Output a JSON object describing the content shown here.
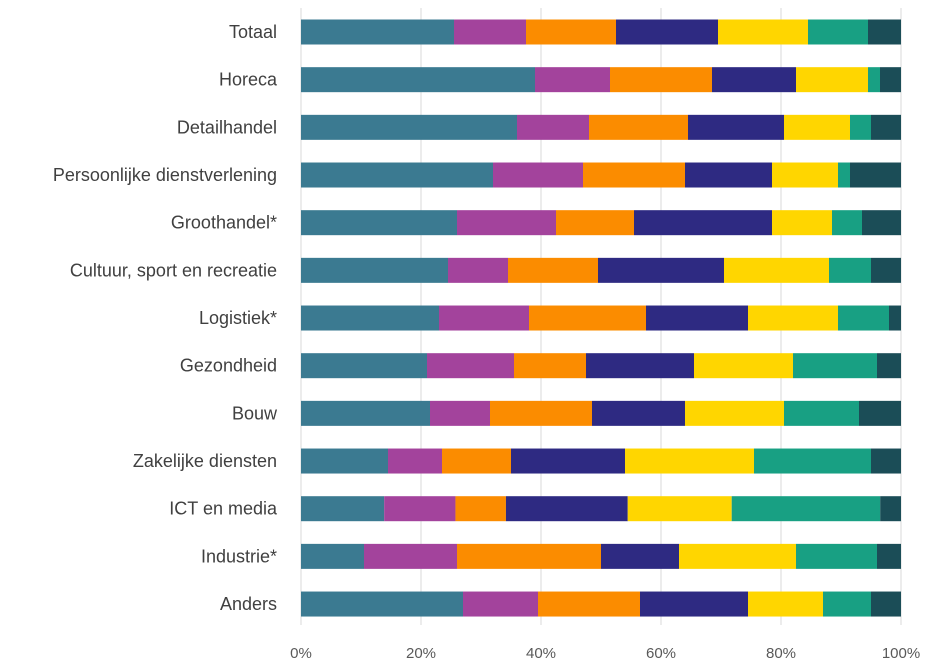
{
  "chart_data": {
    "type": "bar",
    "orientation": "horizontal",
    "stacked": "100%",
    "categories": [
      "Totaal",
      "Horeca",
      "Detailhandel",
      "Persoonlijke dienstverlening",
      "Groothandel*",
      "Cultuur, sport en recreatie",
      "Logistiek*",
      "Gezondheid",
      "Bouw",
      "Zakelijke diensten",
      "ICT en media",
      "Industrie*",
      "Anders"
    ],
    "series": [
      {
        "color": "#3b7a91",
        "values": [
          25.5,
          39,
          36,
          32,
          26,
          24.5,
          23,
          21,
          21.5,
          14.5,
          14,
          10.5,
          27
        ]
      },
      {
        "color": "#a3439c",
        "values": [
          12,
          12.5,
          12,
          15,
          16.5,
          10,
          15,
          14.5,
          10,
          9,
          12,
          15.5,
          12.5
        ]
      },
      {
        "color": "#fb8c00",
        "values": [
          15,
          17,
          16.5,
          17,
          13,
          15,
          19.5,
          12,
          17,
          11.5,
          8.5,
          24,
          17
        ]
      },
      {
        "color": "#2e2a82",
        "values": [
          17,
          14,
          16,
          14.5,
          23,
          21,
          17,
          18,
          15.5,
          19,
          20.5,
          13,
          18
        ]
      },
      {
        "color": "#ffd600",
        "values": [
          15,
          12,
          11,
          11,
          10,
          17.5,
          15,
          16.5,
          16.5,
          21.5,
          17.5,
          19.5,
          12.5
        ]
      },
      {
        "color": "#18a083",
        "values": [
          10,
          2,
          3.5,
          2,
          5,
          7,
          8.5,
          14,
          12.5,
          19.5,
          25,
          13.5,
          8
        ]
      },
      {
        "color": "#1b4d57",
        "values": [
          5.5,
          3.5,
          5,
          8.5,
          6.5,
          5,
          2,
          4,
          7,
          5,
          3.5,
          4,
          5
        ]
      }
    ],
    "x_ticks": [
      "0%",
      "20%",
      "40%",
      "60%",
      "80%",
      "100%"
    ],
    "xlim": [
      0,
      100
    ],
    "grid": true
  }
}
